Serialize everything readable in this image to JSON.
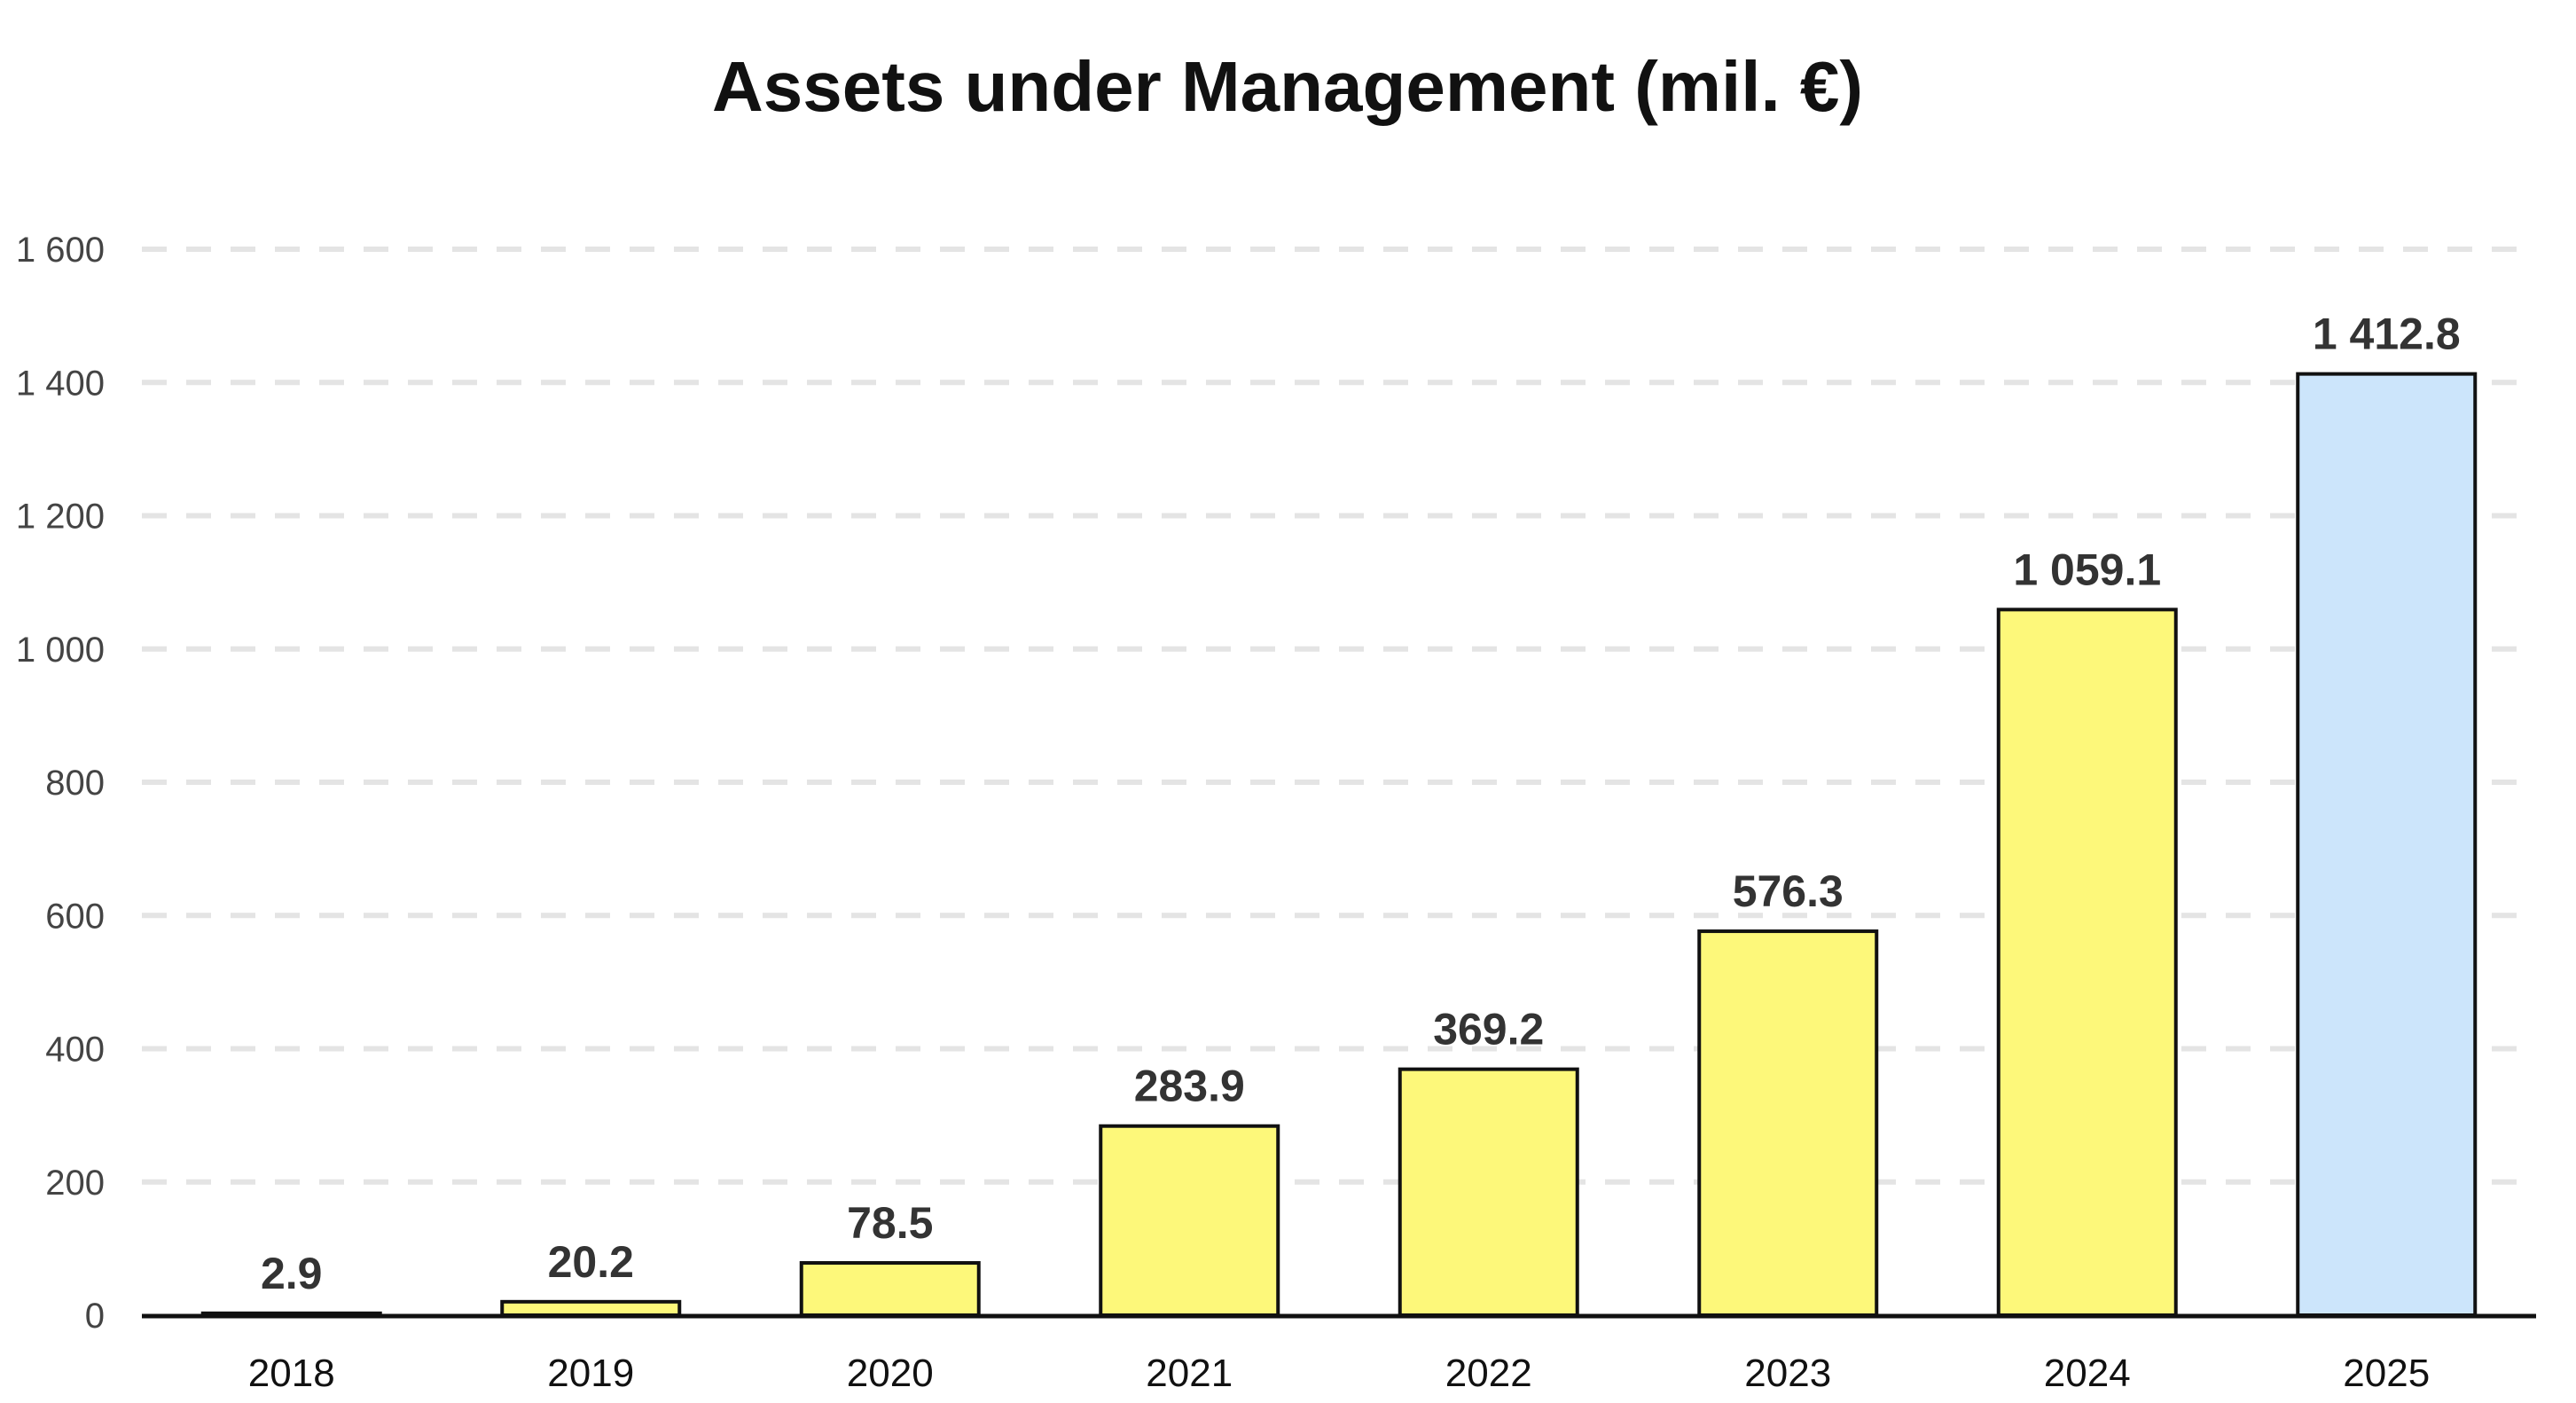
{
  "chart_data": {
    "type": "bar",
    "title": "Assets under Management (mil. €)",
    "xlabel": "",
    "ylabel": "",
    "categories": [
      "2018",
      "2019",
      "2020",
      "2021",
      "2022",
      "2023",
      "2024",
      "2025"
    ],
    "values": [
      2.9,
      20.2,
      78.5,
      283.9,
      369.2,
      576.3,
      1059.1,
      1412.8
    ],
    "value_labels": [
      "2.9",
      "20.2",
      "78.5",
      "283.9",
      "369.2",
      "576.3",
      "1 059.1",
      "1 412.8"
    ],
    "ylim": [
      0,
      1600
    ],
    "yticks": [
      0,
      200,
      400,
      600,
      800,
      1000,
      1200,
      1400,
      1600
    ],
    "ytick_labels": [
      "0",
      "200",
      "400",
      "600",
      "800",
      "1 000",
      "1 200",
      "1 400",
      "1 600"
    ],
    "grid": "horizontal-dashed",
    "legend": "none",
    "bar_colors": [
      "#FDF87A",
      "#FDF87A",
      "#FDF87A",
      "#FDF87A",
      "#FDF87A",
      "#FDF87A",
      "#FDF87A",
      "#CCE5FB"
    ],
    "bar_outline_color": "#111111",
    "grid_color": "#E4E4E4",
    "axis_color": "#111111"
  }
}
